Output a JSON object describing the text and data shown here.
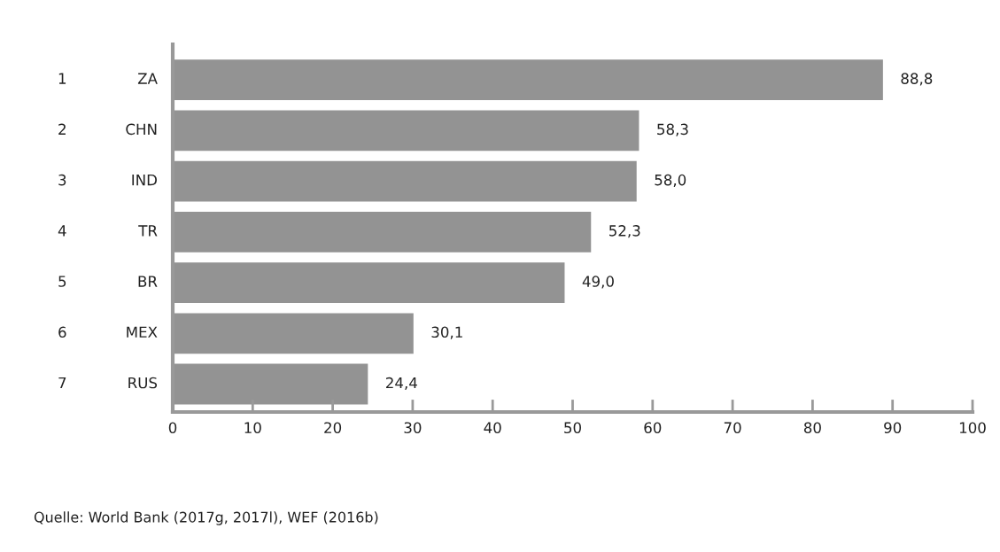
{
  "chart_data": {
    "type": "bar",
    "orientation": "horizontal",
    "categories": [
      "1 ZA",
      "2 CHN",
      "3 IND",
      "4 TR",
      "5 BR",
      "6 MEX",
      "7 RUS"
    ],
    "values": [
      88.8,
      58.3,
      58.0,
      52.3,
      49.0,
      30.1,
      24.4
    ],
    "value_labels": [
      "88,8",
      "58,3",
      "58,0",
      "52,3",
      "49,0",
      "30,1",
      "24,4"
    ],
    "color": "#939393",
    "xlim": [
      0,
      100
    ],
    "xticks": [
      0,
      10,
      20,
      30,
      40,
      50,
      60,
      70,
      80,
      90,
      100
    ],
    "grid": false,
    "annotations": [
      "Quelle: World Bank (2017g, 2017l), WEF (2016b)"
    ]
  }
}
